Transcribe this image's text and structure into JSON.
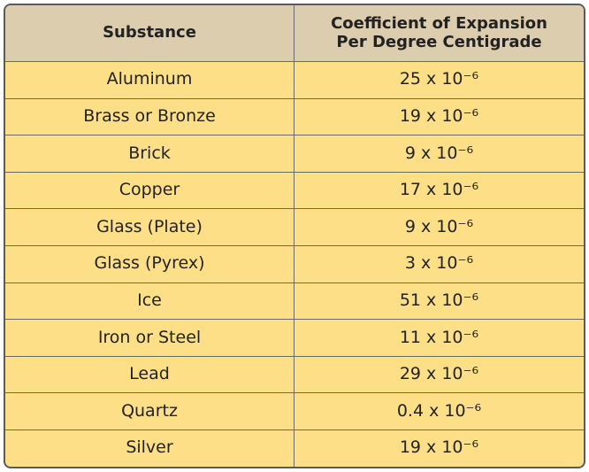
{
  "table": {
    "columns": [
      "Substance",
      "Coefficient of Expansion Per Degree Centigrade"
    ],
    "rows": [
      [
        "Aluminum",
        "25 x 10⁻⁶"
      ],
      [
        "Brass or Bronze",
        "19 x 10⁻⁶"
      ],
      [
        "Brick",
        "9 x 10⁻⁶"
      ],
      [
        "Copper",
        "17 x 10⁻⁶"
      ],
      [
        "Glass (Plate)",
        "9 x 10⁻⁶"
      ],
      [
        "Glass (Pyrex)",
        "3 x 10⁻⁶"
      ],
      [
        "Ice",
        "51 x 10⁻⁶"
      ],
      [
        "Iron or Steel",
        "11 x 10⁻⁶"
      ],
      [
        "Lead",
        "29 x 10⁻⁶"
      ],
      [
        "Quartz",
        "0.4 x 10⁻⁶"
      ],
      [
        "Silver",
        "19 x 10⁻⁶"
      ]
    ]
  }
}
